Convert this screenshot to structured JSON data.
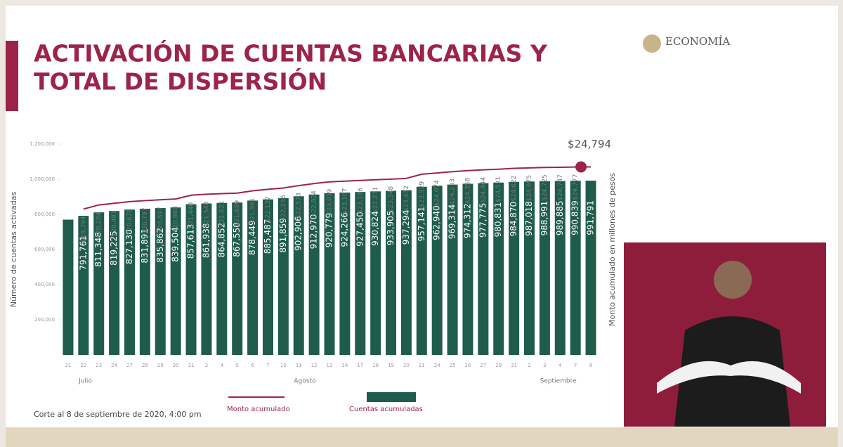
{
  "chart_data": {
    "type": "bar",
    "title": [
      "ACTIVACIÓN DE CUENTAS BANCARIAS Y",
      "TOTAL DE DISPERSIÓN"
    ],
    "logo": "ECONOMÍA",
    "footnote": "Corte al 8 de septiembre de 2020, 4:00 pm",
    "ylabel": "Número de cuentas activadas",
    "y2label": "Monto acumulado en millones de pesos",
    "month_labels": [
      "Julio",
      "Agosto",
      "Septiembre"
    ],
    "categories": [
      "21",
      "22",
      "23",
      "24",
      "27",
      "28",
      "29",
      "30",
      "31",
      "3",
      "4",
      "5",
      "6",
      "7",
      "10",
      "11",
      "12",
      "13",
      "14",
      "17",
      "18",
      "19",
      "20",
      "21",
      "24",
      "25",
      "26",
      "27",
      "28",
      "31",
      "2",
      "3",
      "4",
      "7",
      "8"
    ],
    "ylim": [
      0,
      1200000
    ],
    "yticks": [
      {
        "value": 200000,
        "label": "200,000"
      },
      {
        "value": 400000,
        "label": "400,000"
      },
      {
        "value": 600000,
        "label": "600,000"
      },
      {
        "value": 800000,
        "label": "800,000"
      },
      {
        "value": 1000000,
        "label": "1,000,000"
      },
      {
        "value": 1200000,
        "label": "1,200,000"
      }
    ],
    "y2lim": [
      2500,
      27500
    ],
    "series": [
      {
        "name": "Cuentas acumuladas",
        "type": "bar",
        "color": "#1f5c4c",
        "values": [
          770000,
          791761,
          811348,
          819225,
          827130,
          831891,
          835862,
          839504,
          857613,
          861938,
          864852,
          867550,
          878449,
          885487,
          891859,
          902906,
          912970,
          920779,
          924266,
          927450,
          930824,
          933905,
          937294,
          957141,
          962940,
          969314,
          974312,
          977775,
          980831,
          984870,
          987018,
          988991,
          989885,
          990839,
          991791
        ],
        "value_labels": [
          null,
          "791,761",
          "811,348",
          "819,225",
          "827,130",
          "831,891",
          "835,862",
          "839,504",
          "857,613",
          "861,938",
          "864,852",
          "867,550",
          "878,449",
          "885,487",
          "891,859",
          "902,906",
          "912,970",
          "920,779",
          "924,266",
          "927,450",
          "930,824",
          "933,905",
          "937,294",
          "957,141",
          "962,940",
          "969,314",
          "974,312",
          "977,775",
          "980,831",
          "984,870",
          "987,018",
          "988,991",
          "989,885",
          "990,839",
          "991,791"
        ]
      },
      {
        "name": "Monto acumulado",
        "type": "line",
        "axis": "y2",
        "color": "#9d2449",
        "values": [
          null,
          19794,
          20284,
          20481,
          20678,
          20797,
          20897,
          20988,
          21440,
          21548,
          21621,
          21689,
          21961,
          22137,
          22296,
          22573,
          22824,
          23019,
          23107,
          23186,
          23271,
          23348,
          23432,
          23929,
          24074,
          24233,
          24358,
          24444,
          24521,
          24622,
          24675,
          24725,
          24747,
          24777,
          24794
        ],
        "value_labels": [
          null,
          "$19,794",
          "$20,284",
          "$20,481",
          "$20,678",
          "$20,797",
          "$20,897",
          "$20,988",
          "$21,440",
          "$21,548",
          "$21,621",
          "$21,689",
          "$21,961",
          "$22,137",
          "$22,296",
          "$22,573",
          "$22,824",
          "$23,019",
          "$23,107",
          "$23,186",
          "$23,271",
          "$23,348",
          "$23,432",
          "$23,929",
          "$24,074",
          "$24,233",
          "$24,358",
          "$24,444",
          "$24,521",
          "$24,622",
          "$24,675",
          "$24,725",
          "$24,747",
          "$24,777",
          "$24,794"
        ]
      }
    ]
  }
}
